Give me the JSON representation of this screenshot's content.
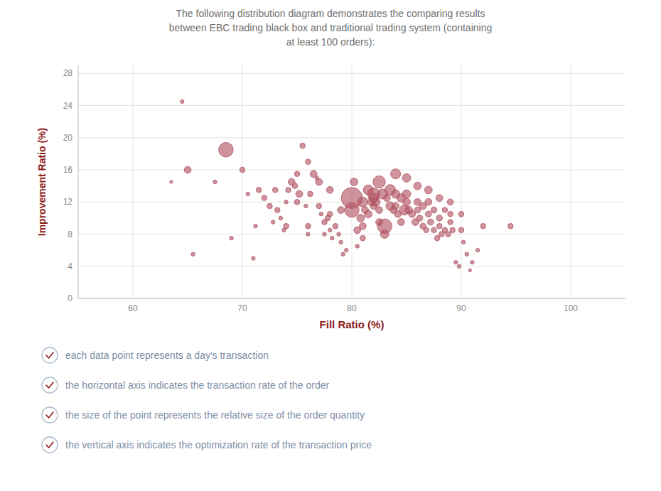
{
  "chart_data": {
    "type": "scatter",
    "title": "The following distribution diagram demonstrates the comparing results\nbetween EBC trading black box and traditional trading system (containing\nat least 100 orders):",
    "xlabel": "Fill Ratio (%)",
    "ylabel": "Improvement Ratio (%)",
    "color": "#b05060",
    "grid": true,
    "xlim": [
      55,
      105
    ],
    "ylim": [
      0,
      29
    ],
    "xticks": [
      60,
      70,
      80,
      90,
      100
    ],
    "yticks": [
      0,
      4,
      8,
      12,
      16,
      20,
      24,
      28
    ],
    "annotations": [
      "each data point represents a day's transaction",
      "the horizontal axis indicates the transaction rate of the order",
      "the size of the point represents the relative size of the order quantity",
      "the vertical axis indicates the optimization rate of the transaction price"
    ],
    "x": [
      63.5,
      64.5,
      65.0,
      65.5,
      67.5,
      68.5,
      69.0,
      70.0,
      70.5,
      71.0,
      71.2,
      71.5,
      72.0,
      72.5,
      72.8,
      73.0,
      73.2,
      73.5,
      73.8,
      74.0,
      74.0,
      74.2,
      74.5,
      74.8,
      75.0,
      75.0,
      75.2,
      75.5,
      75.8,
      76.0,
      76.0,
      76.0,
      76.2,
      76.5,
      76.8,
      77.0,
      77.0,
      77.2,
      77.5,
      77.5,
      77.8,
      78.0,
      78.0,
      78.0,
      78.2,
      78.5,
      78.8,
      79.0,
      79.0,
      79.2,
      79.5,
      80.0,
      80.0,
      80.2,
      80.5,
      80.5,
      80.8,
      81.0,
      81.0,
      81.0,
      81.2,
      81.5,
      81.5,
      81.8,
      82.0,
      82.0,
      82.0,
      82.2,
      82.5,
      82.5,
      82.5,
      82.8,
      83.0,
      83.0,
      83.2,
      83.5,
      83.5,
      83.8,
      84.0,
      84.0,
      84.0,
      84.2,
      84.5,
      84.5,
      84.8,
      85.0,
      85.0,
      85.0,
      85.2,
      85.5,
      85.8,
      86.0,
      86.0,
      86.0,
      86.2,
      86.5,
      86.5,
      86.8,
      87.0,
      87.0,
      87.0,
      87.2,
      87.5,
      87.5,
      87.8,
      88.0,
      88.0,
      88.0,
      88.2,
      88.5,
      88.5,
      88.8,
      89.0,
      89.0,
      89.0,
      89.2,
      89.5,
      89.8,
      90.0,
      90.0,
      90.2,
      90.5,
      90.8,
      91.0,
      91.5,
      92.0,
      94.5
    ],
    "values": [
      14.5,
      24.5,
      16.0,
      5.5,
      14.5,
      18.5,
      7.5,
      16.0,
      13.0,
      5.0,
      9.0,
      13.5,
      12.5,
      11.5,
      9.5,
      13.5,
      11.0,
      10.0,
      8.5,
      9.0,
      12.0,
      13.5,
      14.5,
      14.0,
      15.5,
      12.0,
      13.0,
      19.0,
      11.5,
      17.0,
      9.0,
      8.0,
      13.0,
      15.5,
      15.0,
      14.5,
      11.5,
      10.5,
      9.5,
      8.0,
      10.0,
      13.5,
      10.5,
      8.5,
      7.5,
      9.0,
      8.0,
      11.0,
      7.0,
      5.5,
      6.0,
      12.5,
      11.0,
      14.5,
      8.5,
      6.5,
      10.0,
      12.0,
      9.0,
      7.5,
      11.0,
      13.5,
      10.5,
      12.0,
      13.0,
      12.5,
      11.5,
      12.0,
      14.5,
      11.0,
      9.5,
      13.0,
      9.0,
      8.0,
      12.5,
      13.5,
      11.5,
      11.0,
      15.5,
      13.0,
      11.5,
      10.5,
      12.5,
      9.5,
      11.0,
      15.0,
      13.0,
      12.0,
      11.0,
      10.5,
      9.5,
      14.0,
      12.0,
      11.0,
      10.0,
      11.5,
      9.0,
      8.5,
      13.5,
      12.0,
      10.5,
      9.5,
      11.0,
      8.5,
      7.5,
      12.5,
      10.0,
      9.0,
      8.0,
      11.0,
      8.5,
      8.0,
      12.0,
      10.5,
      9.5,
      8.5,
      4.5,
      4.0,
      10.5,
      8.5,
      7.0,
      5.5,
      3.5,
      4.5,
      6.0,
      9.0,
      9.0
    ],
    "sizes": [
      8,
      10,
      18,
      10,
      10,
      38,
      10,
      14,
      10,
      10,
      10,
      14,
      14,
      14,
      10,
      14,
      14,
      10,
      10,
      14,
      10,
      14,
      18,
      14,
      14,
      14,
      18,
      14,
      10,
      14,
      14,
      10,
      14,
      18,
      10,
      18,
      14,
      10,
      14,
      10,
      14,
      18,
      14,
      10,
      10,
      14,
      10,
      18,
      10,
      10,
      10,
      55,
      38,
      20,
      18,
      10,
      20,
      26,
      18,
      14,
      18,
      26,
      20,
      20,
      32,
      26,
      18,
      22,
      32,
      18,
      18,
      26,
      38,
      22,
      18,
      28,
      22,
      18,
      26,
      22,
      18,
      18,
      22,
      18,
      26,
      22,
      22,
      20,
      20,
      18,
      18,
      20,
      18,
      16,
      16,
      18,
      16,
      14,
      20,
      18,
      16,
      16,
      16,
      14,
      14,
      18,
      16,
      14,
      14,
      14,
      14,
      14,
      16,
      14,
      14,
      14,
      10,
      10,
      14,
      14,
      10,
      10,
      8,
      10,
      10,
      14,
      14
    ]
  }
}
